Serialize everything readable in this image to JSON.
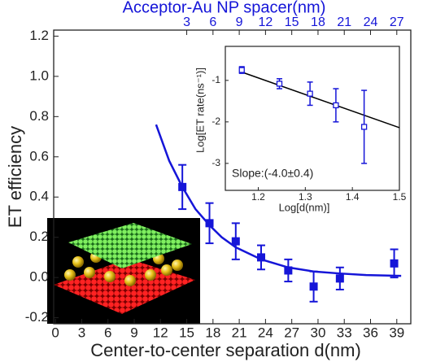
{
  "chart_data": [
    {
      "type": "scatter",
      "xlabel": "Center-to-center separation d(nm)",
      "ylabel": "ET efficiency",
      "x2label": "Acceptor-Au NP spacer(nm)",
      "xlim": [
        -0.2,
        40.6
      ],
      "ylim": [
        -0.23,
        1.23
      ],
      "x2lim": [
        -12.2,
        28.6
      ],
      "xticks": [
        0,
        3,
        6,
        9,
        12,
        15,
        18,
        21,
        24,
        27,
        30,
        33,
        36,
        39
      ],
      "x2ticks": [
        3,
        6,
        9,
        12,
        15,
        18,
        21,
        24,
        27
      ],
      "yticks": [
        {
          "value": -0.2,
          "label": "-0.2"
        },
        {
          "value": 0,
          "label": "0.0"
        },
        0.2,
        0.4,
        0.6,
        0.8,
        {
          "value": 1,
          "label": "1.0"
        },
        1.2
      ],
      "color": "#1515d8",
      "points": {
        "x": [
          14.5,
          17.6,
          20.6,
          23.5,
          26.6,
          29.5,
          32.5,
          38.7
        ],
        "values": [
          0.45,
          0.27,
          0.18,
          0.1,
          0.035,
          -0.045,
          -0.005,
          0.07
        ],
        "errors": [
          0.11,
          0.1,
          0.09,
          0.06,
          0.055,
          0.075,
          0.055,
          0.07
        ]
      },
      "fit": {
        "x": [
          11.5,
          13,
          14.5,
          16,
          17.6,
          19,
          20.6,
          23.5,
          26.6,
          29.5,
          32.5,
          35.5,
          39.5
        ],
        "values": [
          0.76,
          0.58,
          0.45,
          0.34,
          0.26,
          0.2,
          0.15,
          0.09,
          0.05,
          0.03,
          0.02,
          0.012,
          0.008
        ]
      }
    },
    {
      "type": "scatter",
      "xlabel": "Log[d(nm)]",
      "ylabel": "Log[ET rate(ns⁻¹)]",
      "annotation": "Slope:(-4.0±0.4)",
      "xlim": [
        1.13,
        1.5
      ],
      "ylim": [
        -3.65,
        -0.18
      ],
      "xticks": [
        1.2,
        1.3,
        1.4,
        1.5
      ],
      "yticks": [
        -1,
        -2,
        -3
      ],
      "color": "#1515d8",
      "points": {
        "x": [
          1.165,
          1.245,
          1.31,
          1.365,
          1.425
        ],
        "values": [
          -0.75,
          -1.08,
          -1.32,
          -1.6,
          -2.12
        ],
        "errors": [
          0.08,
          0.12,
          0.28,
          0.4,
          0.88
        ]
      },
      "fit": {
        "x": [
          1.165,
          1.5
        ],
        "values": [
          -0.8,
          -2.14
        ],
        "color": "#000000"
      }
    }
  ]
}
